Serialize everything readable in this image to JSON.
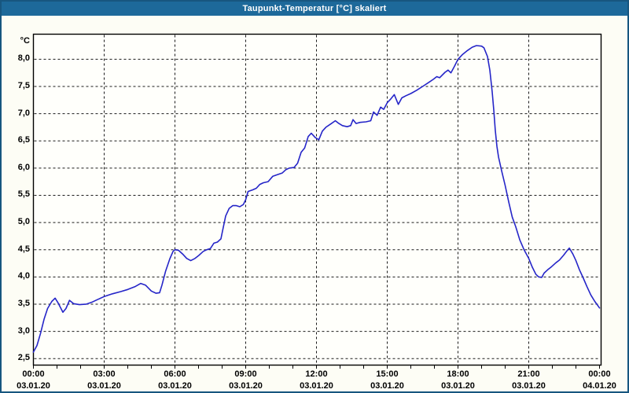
{
  "window": {
    "title": "Taupunkt-Temperatur [°C] skaliert",
    "title_bar_color": "#1d699a",
    "border_color": "#17567f",
    "background_color": "#fdfdf5"
  },
  "chart_data": {
    "type": "line",
    "title": "Taupunkt-Temperatur [°C] skaliert",
    "ylabel": "°C",
    "xlabel": "",
    "legend": "none",
    "grid": "black dashed; horizontal every 0.5 °C, vertical every 3 h; minor x ticks every 1 h",
    "ylim": [
      2.38,
      8.46
    ],
    "xlim_hours": [
      0,
      24.07
    ],
    "line_color": "#2525c8",
    "grid_color": "#1a1a1a",
    "plot_background": "#fffffb",
    "y_ticks": [
      {
        "value": 8.0,
        "label": "8,0"
      },
      {
        "value": 7.5,
        "label": "7,5"
      },
      {
        "value": 7.0,
        "label": "7,0"
      },
      {
        "value": 6.5,
        "label": "6,5"
      },
      {
        "value": 6.0,
        "label": "6,0"
      },
      {
        "value": 5.5,
        "label": "5,5"
      },
      {
        "value": 5.0,
        "label": "5,0"
      },
      {
        "value": 4.5,
        "label": "4,5"
      },
      {
        "value": 4.0,
        "label": "4,0"
      },
      {
        "value": 3.5,
        "label": "3,5"
      },
      {
        "value": 3.0,
        "label": "3,0"
      },
      {
        "value": 2.5,
        "label": "2,5"
      }
    ],
    "x_ticks": [
      {
        "hour": 0,
        "time": "00:00",
        "date": "03.01.20"
      },
      {
        "hour": 3,
        "time": "03:00",
        "date": "03.01.20"
      },
      {
        "hour": 6,
        "time": "06:00",
        "date": "03.01.20"
      },
      {
        "hour": 9,
        "time": "09:00",
        "date": "03.01.20"
      },
      {
        "hour": 12,
        "time": "12:00",
        "date": "03.01.20"
      },
      {
        "hour": 15,
        "time": "15:00",
        "date": "03.01.20"
      },
      {
        "hour": 18,
        "time": "18:00",
        "date": "03.01.20"
      },
      {
        "hour": 21,
        "time": "21:00",
        "date": "03.01.20"
      },
      {
        "hour": 24,
        "time": "00:00",
        "date": "04.01.20"
      }
    ],
    "minor_x_tick_every_hours": 1,
    "series": [
      {
        "name": "Taupunkt-Temperatur [°C] skaliert",
        "color": "#2525c8",
        "points": [
          [
            0.0,
            2.62
          ],
          [
            0.15,
            2.74
          ],
          [
            0.3,
            2.96
          ],
          [
            0.45,
            3.22
          ],
          [
            0.6,
            3.42
          ],
          [
            0.78,
            3.55
          ],
          [
            0.92,
            3.61
          ],
          [
            1.05,
            3.52
          ],
          [
            1.25,
            3.35
          ],
          [
            1.38,
            3.42
          ],
          [
            1.53,
            3.57
          ],
          [
            1.7,
            3.51
          ],
          [
            1.95,
            3.49
          ],
          [
            2.25,
            3.5
          ],
          [
            2.5,
            3.54
          ],
          [
            2.75,
            3.59
          ],
          [
            3.0,
            3.64
          ],
          [
            3.35,
            3.69
          ],
          [
            3.7,
            3.73
          ],
          [
            4.0,
            3.77
          ],
          [
            4.3,
            3.82
          ],
          [
            4.55,
            3.88
          ],
          [
            4.75,
            3.85
          ],
          [
            5.0,
            3.74
          ],
          [
            5.2,
            3.7
          ],
          [
            5.35,
            3.71
          ],
          [
            5.45,
            3.85
          ],
          [
            5.6,
            4.1
          ],
          [
            5.78,
            4.33
          ],
          [
            5.92,
            4.47
          ],
          [
            6.0,
            4.5
          ],
          [
            6.15,
            4.49
          ],
          [
            6.35,
            4.41
          ],
          [
            6.5,
            4.34
          ],
          [
            6.67,
            4.3
          ],
          [
            6.85,
            4.34
          ],
          [
            7.0,
            4.39
          ],
          [
            7.2,
            4.47
          ],
          [
            7.35,
            4.5
          ],
          [
            7.5,
            4.52
          ],
          [
            7.65,
            4.62
          ],
          [
            7.8,
            4.64
          ],
          [
            7.95,
            4.7
          ],
          [
            8.02,
            4.85
          ],
          [
            8.15,
            5.12
          ],
          [
            8.3,
            5.26
          ],
          [
            8.45,
            5.31
          ],
          [
            8.6,
            5.31
          ],
          [
            8.75,
            5.29
          ],
          [
            8.9,
            5.33
          ],
          [
            9.0,
            5.42
          ],
          [
            9.1,
            5.57
          ],
          [
            9.3,
            5.6
          ],
          [
            9.45,
            5.63
          ],
          [
            9.6,
            5.7
          ],
          [
            9.75,
            5.73
          ],
          [
            9.95,
            5.75
          ],
          [
            10.15,
            5.85
          ],
          [
            10.35,
            5.88
          ],
          [
            10.55,
            5.91
          ],
          [
            10.7,
            5.97
          ],
          [
            10.85,
            6.0
          ],
          [
            11.05,
            6.01
          ],
          [
            11.2,
            6.09
          ],
          [
            11.35,
            6.29
          ],
          [
            11.5,
            6.37
          ],
          [
            11.65,
            6.58
          ],
          [
            11.78,
            6.64
          ],
          [
            11.95,
            6.56
          ],
          [
            12.1,
            6.52
          ],
          [
            12.25,
            6.68
          ],
          [
            12.4,
            6.75
          ],
          [
            12.6,
            6.81
          ],
          [
            12.8,
            6.87
          ],
          [
            12.95,
            6.82
          ],
          [
            13.1,
            6.78
          ],
          [
            13.3,
            6.76
          ],
          [
            13.45,
            6.78
          ],
          [
            13.55,
            6.89
          ],
          [
            13.68,
            6.82
          ],
          [
            13.85,
            6.84
          ],
          [
            14.1,
            6.85
          ],
          [
            14.3,
            6.87
          ],
          [
            14.42,
            7.03
          ],
          [
            14.57,
            6.97
          ],
          [
            14.72,
            7.12
          ],
          [
            14.85,
            7.08
          ],
          [
            15.0,
            7.2
          ],
          [
            15.15,
            7.27
          ],
          [
            15.3,
            7.35
          ],
          [
            15.47,
            7.17
          ],
          [
            15.62,
            7.29
          ],
          [
            15.8,
            7.33
          ],
          [
            16.0,
            7.37
          ],
          [
            16.25,
            7.43
          ],
          [
            16.5,
            7.5
          ],
          [
            16.75,
            7.57
          ],
          [
            16.95,
            7.63
          ],
          [
            17.1,
            7.68
          ],
          [
            17.22,
            7.66
          ],
          [
            17.45,
            7.76
          ],
          [
            17.58,
            7.8
          ],
          [
            17.7,
            7.75
          ],
          [
            17.85,
            7.87
          ],
          [
            18.0,
            8.0
          ],
          [
            18.2,
            8.09
          ],
          [
            18.4,
            8.16
          ],
          [
            18.6,
            8.22
          ],
          [
            18.78,
            8.25
          ],
          [
            19.0,
            8.24
          ],
          [
            19.1,
            8.21
          ],
          [
            19.25,
            8.05
          ],
          [
            19.35,
            7.8
          ],
          [
            19.45,
            7.4
          ],
          [
            19.52,
            7.05
          ],
          [
            19.58,
            6.7
          ],
          [
            19.65,
            6.4
          ],
          [
            19.72,
            6.2
          ],
          [
            19.85,
            5.95
          ],
          [
            20.0,
            5.68
          ],
          [
            20.15,
            5.38
          ],
          [
            20.3,
            5.1
          ],
          [
            20.45,
            4.92
          ],
          [
            20.62,
            4.68
          ],
          [
            20.8,
            4.5
          ],
          [
            21.0,
            4.34
          ],
          [
            21.15,
            4.18
          ],
          [
            21.3,
            4.05
          ],
          [
            21.42,
            4.0
          ],
          [
            21.55,
            3.99
          ],
          [
            21.65,
            4.07
          ],
          [
            21.8,
            4.13
          ],
          [
            21.97,
            4.19
          ],
          [
            22.15,
            4.26
          ],
          [
            22.3,
            4.31
          ],
          [
            22.48,
            4.4
          ],
          [
            22.62,
            4.48
          ],
          [
            22.72,
            4.53
          ],
          [
            22.87,
            4.42
          ],
          [
            23.0,
            4.3
          ],
          [
            23.15,
            4.13
          ],
          [
            23.3,
            3.99
          ],
          [
            23.47,
            3.82
          ],
          [
            23.63,
            3.67
          ],
          [
            23.8,
            3.55
          ],
          [
            23.95,
            3.46
          ],
          [
            24.0,
            3.43
          ]
        ]
      }
    ]
  }
}
